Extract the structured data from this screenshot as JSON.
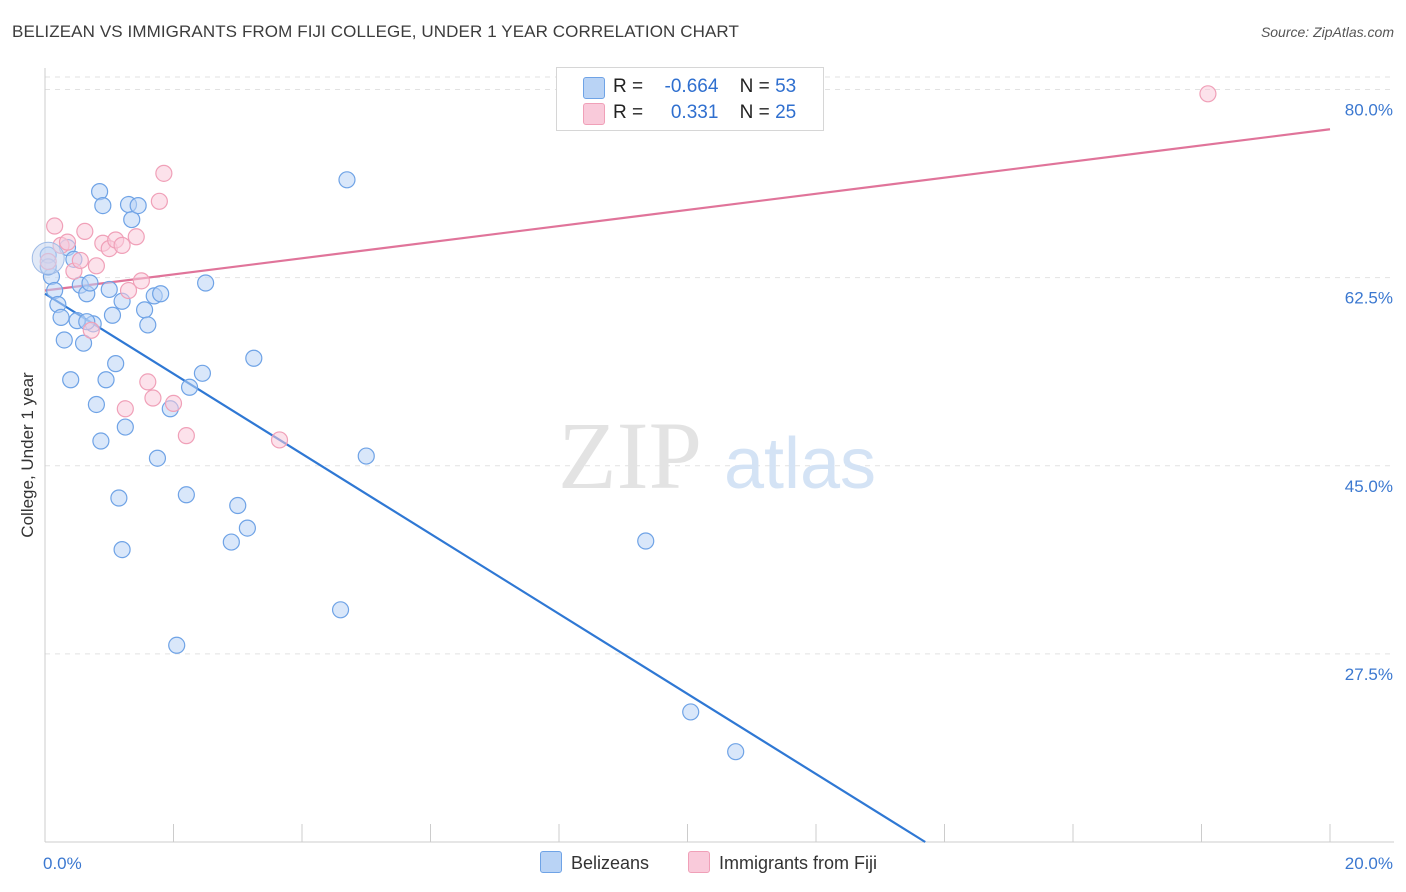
{
  "chart_data": {
    "type": "scatter",
    "title": "BELIZEAN VS IMMIGRANTS FROM FIJI COLLEGE, UNDER 1 YEAR CORRELATION CHART",
    "source": "Source: ZipAtlas.com",
    "xlabel": "",
    "ylabel": "College, Under 1 year",
    "xlim": [
      0,
      20
    ],
    "ylim": [
      10,
      82
    ],
    "x_tick_labels": [
      {
        "value": 0,
        "label": "0.0%"
      },
      {
        "value": 20,
        "label": "20.0%"
      }
    ],
    "y_tick_labels": [
      {
        "value": 27.5,
        "label": "27.5%"
      },
      {
        "value": 45.0,
        "label": "45.0%"
      },
      {
        "value": 62.5,
        "label": "62.5%"
      },
      {
        "value": 80.0,
        "label": "80.0%"
      }
    ],
    "watermark": {
      "zip": "ZIP",
      "atlas": "atlas"
    },
    "legend": {
      "rows": [
        {
          "r_label": "R =",
          "r_value": "-0.664",
          "n_label": "N =",
          "n_value": "53"
        },
        {
          "r_label": "R =",
          "r_value": "0.331",
          "n_label": "N =",
          "n_value": "25"
        }
      ]
    },
    "series": [
      {
        "name": "Belizeans",
        "color": "#6fa3e6",
        "fill": "#b9d3f5",
        "line_color": "#2f78d4",
        "trend": {
          "x": [
            0,
            13.7
          ],
          "y": [
            61.0,
            10.0
          ]
        },
        "points": [
          [
            0.05,
            64.6
          ],
          [
            0.1,
            62.6
          ],
          [
            0.15,
            61.3
          ],
          [
            0.2,
            60.0
          ],
          [
            0.25,
            58.8
          ],
          [
            0.3,
            56.7
          ],
          [
            0.35,
            65.3
          ],
          [
            0.4,
            53.0
          ],
          [
            0.45,
            64.2
          ],
          [
            0.5,
            58.5
          ],
          [
            0.55,
            61.8
          ],
          [
            0.6,
            56.4
          ],
          [
            0.65,
            61.0
          ],
          [
            0.7,
            62.0
          ],
          [
            0.75,
            58.2
          ],
          [
            0.8,
            50.7
          ],
          [
            0.85,
            70.5
          ],
          [
            0.87,
            47.3
          ],
          [
            0.9,
            69.2
          ],
          [
            0.95,
            53.0
          ],
          [
            1.05,
            59.0
          ],
          [
            1.1,
            54.5
          ],
          [
            1.15,
            42.0
          ],
          [
            1.2,
            37.2
          ],
          [
            1.25,
            48.6
          ],
          [
            1.3,
            69.3
          ],
          [
            1.35,
            67.9
          ],
          [
            1.45,
            69.2
          ],
          [
            1.55,
            59.5
          ],
          [
            1.6,
            58.1
          ],
          [
            1.7,
            60.8
          ],
          [
            1.75,
            45.7
          ],
          [
            1.8,
            61.0
          ],
          [
            1.95,
            50.3
          ],
          [
            2.05,
            28.3
          ],
          [
            2.2,
            42.3
          ],
          [
            2.25,
            52.3
          ],
          [
            2.45,
            53.6
          ],
          [
            2.5,
            62.0
          ],
          [
            2.9,
            37.9
          ],
          [
            3.0,
            41.3
          ],
          [
            3.15,
            39.2
          ],
          [
            3.25,
            55.0
          ],
          [
            4.6,
            31.6
          ],
          [
            4.7,
            71.6
          ],
          [
            5.0,
            45.9
          ],
          [
            1.0,
            61.4
          ],
          [
            1.2,
            60.3
          ],
          [
            0.65,
            58.4
          ],
          [
            9.35,
            38.0
          ],
          [
            10.05,
            22.1
          ],
          [
            10.75,
            18.4
          ],
          [
            0.05,
            63.5
          ]
        ]
      },
      {
        "name": "Immigrants from Fiji",
        "color": "#f0a0b8",
        "fill": "#f9cada",
        "line_color": "#e0749a",
        "trend": {
          "x": [
            0,
            20
          ],
          "y": [
            61.3,
            76.3
          ]
        },
        "points": [
          [
            0.05,
            64.0
          ],
          [
            0.15,
            67.3
          ],
          [
            0.25,
            65.5
          ],
          [
            0.35,
            65.8
          ],
          [
            0.45,
            63.1
          ],
          [
            0.55,
            64.1
          ],
          [
            0.62,
            66.8
          ],
          [
            0.72,
            57.6
          ],
          [
            0.8,
            63.6
          ],
          [
            0.9,
            65.7
          ],
          [
            1.0,
            65.2
          ],
          [
            1.1,
            66.0
          ],
          [
            1.2,
            65.5
          ],
          [
            1.3,
            61.3
          ],
          [
            1.42,
            66.3
          ],
          [
            1.5,
            62.2
          ],
          [
            1.6,
            52.8
          ],
          [
            1.68,
            51.3
          ],
          [
            1.78,
            69.6
          ],
          [
            1.85,
            72.2
          ],
          [
            2.0,
            50.8
          ],
          [
            2.2,
            47.8
          ],
          [
            3.65,
            47.4
          ],
          [
            1.25,
            50.3
          ],
          [
            18.1,
            79.6
          ]
        ]
      }
    ]
  }
}
